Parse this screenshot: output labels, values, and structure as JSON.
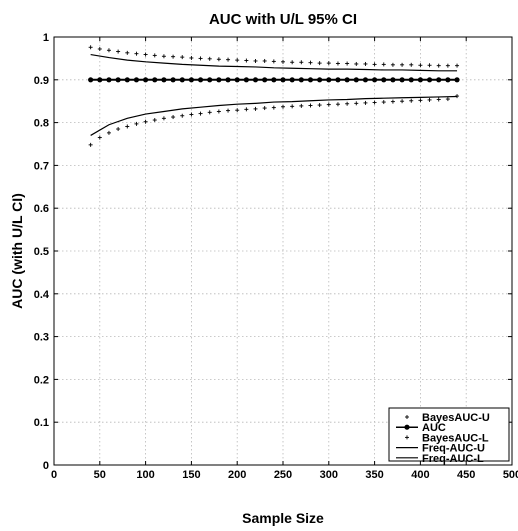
{
  "chart_data": {
    "type": "scatter",
    "title": "AUC with U/L 95% CI",
    "xlabel": "Sample Size",
    "ylabel": "AUC (with U/L CI)",
    "xlim": [
      0,
      500
    ],
    "ylim": [
      0,
      1
    ],
    "xticks": [
      "0",
      "50",
      "100",
      "150",
      "200",
      "250",
      "300",
      "350",
      "400",
      "450",
      "500"
    ],
    "yticks": [
      "0",
      "0.1",
      "0.2",
      "0.3",
      "0.4",
      "0.5",
      "0.6",
      "0.7",
      "0.8",
      "0.9",
      "1"
    ],
    "grid": true,
    "legend_position": "bottom-right",
    "series": [
      {
        "name": "BayesAUC-U",
        "marker": "plus",
        "x": [
          40,
          50,
          60,
          70,
          80,
          90,
          100,
          110,
          120,
          130,
          140,
          150,
          160,
          170,
          180,
          190,
          200,
          210,
          220,
          230,
          240,
          250,
          260,
          270,
          280,
          290,
          300,
          310,
          320,
          330,
          340,
          350,
          360,
          370,
          380,
          390,
          400,
          410,
          420,
          430,
          440
        ],
        "y": [
          0.976,
          0.972,
          0.969,
          0.966,
          0.963,
          0.961,
          0.959,
          0.957,
          0.955,
          0.954,
          0.953,
          0.951,
          0.95,
          0.949,
          0.948,
          0.947,
          0.946,
          0.945,
          0.944,
          0.944,
          0.943,
          0.942,
          0.941,
          0.941,
          0.94,
          0.939,
          0.939,
          0.938,
          0.938,
          0.937,
          0.937,
          0.936,
          0.936,
          0.935,
          0.935,
          0.935,
          0.934,
          0.934,
          0.933,
          0.933,
          0.933
        ]
      },
      {
        "name": "AUC",
        "marker": "dot-line",
        "x": [
          40,
          50,
          60,
          70,
          80,
          90,
          100,
          110,
          120,
          130,
          140,
          150,
          160,
          170,
          180,
          190,
          200,
          210,
          220,
          230,
          240,
          250,
          260,
          270,
          280,
          290,
          300,
          310,
          320,
          330,
          340,
          350,
          360,
          370,
          380,
          390,
          400,
          410,
          420,
          430,
          440
        ],
        "y": [
          0.9,
          0.9,
          0.9,
          0.9,
          0.9,
          0.9,
          0.9,
          0.9,
          0.9,
          0.9,
          0.9,
          0.9,
          0.9,
          0.9,
          0.9,
          0.9,
          0.9,
          0.9,
          0.9,
          0.9,
          0.9,
          0.9,
          0.9,
          0.9,
          0.9,
          0.9,
          0.9,
          0.9,
          0.9,
          0.9,
          0.9,
          0.9,
          0.9,
          0.9,
          0.9,
          0.9,
          0.9,
          0.9,
          0.9,
          0.9,
          0.9
        ]
      },
      {
        "name": "BayesAUC-L",
        "marker": "plus",
        "x": [
          40,
          50,
          60,
          70,
          80,
          90,
          100,
          110,
          120,
          130,
          140,
          150,
          160,
          170,
          180,
          190,
          200,
          210,
          220,
          230,
          240,
          250,
          260,
          270,
          280,
          290,
          300,
          310,
          320,
          330,
          340,
          350,
          360,
          370,
          380,
          390,
          400,
          410,
          420,
          430,
          440
        ],
        "y": [
          0.748,
          0.765,
          0.776,
          0.785,
          0.791,
          0.797,
          0.802,
          0.806,
          0.81,
          0.813,
          0.816,
          0.819,
          0.821,
          0.824,
          0.826,
          0.828,
          0.829,
          0.831,
          0.832,
          0.834,
          0.835,
          0.837,
          0.838,
          0.839,
          0.84,
          0.841,
          0.842,
          0.843,
          0.844,
          0.845,
          0.846,
          0.847,
          0.848,
          0.849,
          0.85,
          0.851,
          0.852,
          0.853,
          0.854,
          0.855,
          0.862
        ]
      },
      {
        "name": "Freq-AUC-U",
        "marker": "line",
        "x": [
          40,
          60,
          80,
          100,
          120,
          140,
          160,
          180,
          200,
          220,
          240,
          260,
          280,
          300,
          320,
          340,
          360,
          380,
          400,
          420,
          440
        ],
        "y": [
          0.959,
          0.952,
          0.946,
          0.942,
          0.939,
          0.936,
          0.934,
          0.932,
          0.931,
          0.93,
          0.928,
          0.927,
          0.926,
          0.925,
          0.925,
          0.924,
          0.923,
          0.923,
          0.922,
          0.921,
          0.921
        ]
      },
      {
        "name": "Freq-AUC-L",
        "marker": "line",
        "x": [
          40,
          60,
          80,
          100,
          120,
          140,
          160,
          180,
          200,
          220,
          240,
          260,
          280,
          300,
          320,
          340,
          360,
          380,
          400,
          420,
          440
        ],
        "y": [
          0.77,
          0.795,
          0.81,
          0.82,
          0.826,
          0.832,
          0.836,
          0.84,
          0.843,
          0.845,
          0.848,
          0.849,
          0.851,
          0.853,
          0.854,
          0.856,
          0.857,
          0.858,
          0.859,
          0.86,
          0.861
        ]
      }
    ]
  }
}
